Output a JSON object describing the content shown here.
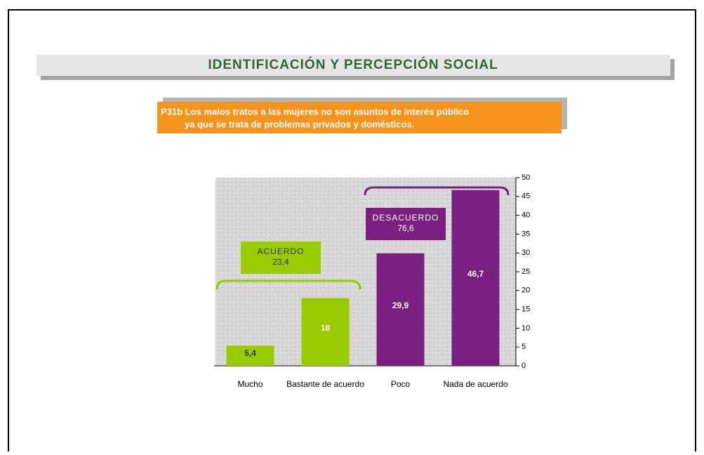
{
  "header": {
    "title": "IDENTIFICACIÓN Y PERCEPCIÓN SOCIAL"
  },
  "question": {
    "lines": [
      "P31b Los malos tratos a las mujeres no son asuntos de interés público",
      "ya que se trata de problemas privados y domésticos."
    ]
  },
  "chart_data": {
    "type": "bar",
    "categories": [
      "Mucho",
      "Bastante de acuerdo",
      "Poco",
      "Nada de acuerdo"
    ],
    "values": [
      5.4,
      18,
      29.9,
      46.7
    ],
    "value_labels": [
      "5,4",
      "18",
      "29,9",
      "46,7"
    ],
    "colors": [
      "#99cc00",
      "#99cc00",
      "#7b1f80",
      "#7b1f80"
    ],
    "ylim": [
      0,
      50
    ],
    "yticks": [
      0,
      5,
      10,
      15,
      20,
      25,
      30,
      35,
      40,
      45,
      50
    ],
    "y_axis_side": "right",
    "grid": false,
    "annotations": [
      {
        "text": "ACUERDO",
        "total": "23,4",
        "color": "#99cc00"
      },
      {
        "text": "DESACUERDO",
        "total": "76,6",
        "color": "#7b1f80"
      }
    ]
  }
}
